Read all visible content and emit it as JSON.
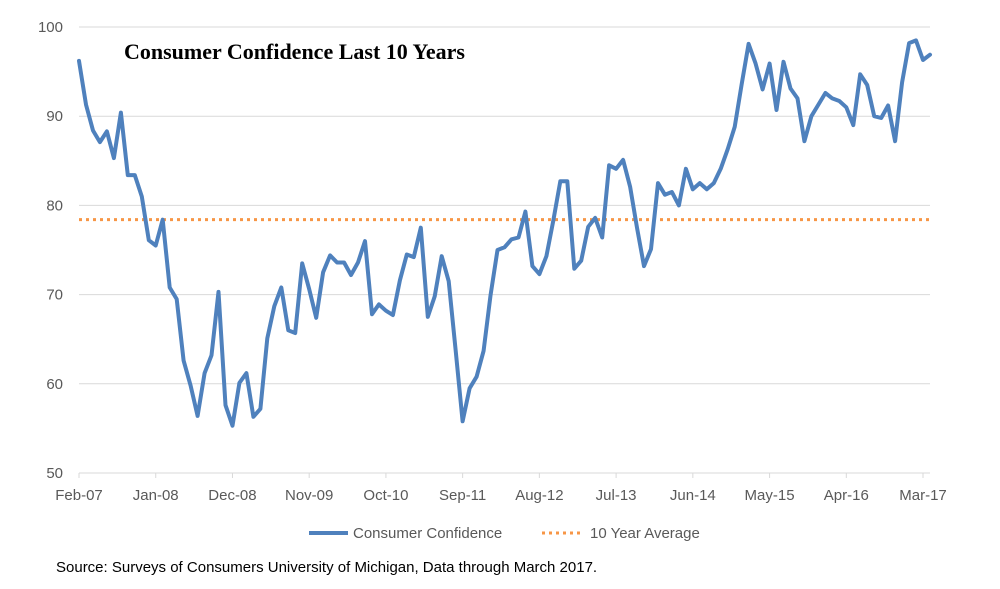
{
  "chart_data": {
    "type": "line",
    "title": "Consumer Confidence Last 10 Years",
    "ylim": [
      50,
      100
    ],
    "yticks": [
      50,
      60,
      70,
      80,
      90,
      100
    ],
    "xtick_labels": [
      "Feb-07",
      "Jan-08",
      "Dec-08",
      "Nov-09",
      "Oct-10",
      "Sep-11",
      "Aug-12",
      "Jul-13",
      "Jun-14",
      "May-15",
      "Apr-16",
      "Mar-17"
    ],
    "x_start": "Feb-07",
    "x_end": "Mar-17",
    "grid": "horizontal",
    "legend_position": "bottom",
    "series": [
      {
        "name": "Consumer Confidence",
        "color": "#4f81bd",
        "style": "solid",
        "values": [
          96.2,
          91.3,
          88.4,
          87.1,
          88.3,
          85.3,
          90.4,
          83.4,
          83.4,
          81.0,
          76.1,
          75.5,
          78.4,
          70.8,
          69.5,
          62.6,
          59.8,
          56.4,
          61.2,
          63.2,
          70.3,
          57.6,
          55.3,
          60.1,
          61.2,
          56.3,
          57.2,
          65.1,
          68.7,
          70.8,
          66.0,
          65.7,
          73.5,
          70.6,
          67.4,
          72.5,
          74.4,
          73.6,
          73.6,
          72.2,
          73.6,
          76.0,
          67.8,
          68.9,
          68.2,
          67.7,
          71.6,
          74.5,
          74.2,
          77.5,
          67.5,
          69.8,
          74.3,
          71.5,
          63.7,
          55.8,
          59.5,
          60.8,
          63.7,
          69.9,
          75.0,
          75.3,
          76.2,
          76.4,
          79.3,
          73.2,
          72.3,
          74.3,
          78.3,
          82.7,
          82.7,
          72.9,
          73.8,
          77.6,
          78.6,
          76.4,
          84.5,
          84.1,
          85.1,
          82.1,
          77.5,
          73.2,
          75.1,
          82.5,
          81.2,
          81.5,
          80.0,
          84.1,
          81.8,
          82.5,
          81.8,
          82.5,
          84.1,
          86.3,
          88.8,
          93.6,
          98.1,
          95.9,
          93.0,
          95.9,
          90.7,
          96.1,
          93.1,
          92.0,
          87.2,
          90.0,
          91.3,
          92.6,
          92.0,
          91.7,
          91.0,
          89.0,
          94.7,
          93.5,
          90.0,
          89.8,
          91.2,
          87.2,
          93.8,
          98.2,
          98.5,
          96.3,
          96.9
        ]
      },
      {
        "name": "10 Year Average",
        "color": "#f79646",
        "style": "dotted",
        "values": [
          78.4,
          78.4
        ]
      }
    ]
  },
  "source": "Source: Surveys of Consumers University of Michigan, Data through March 2017."
}
